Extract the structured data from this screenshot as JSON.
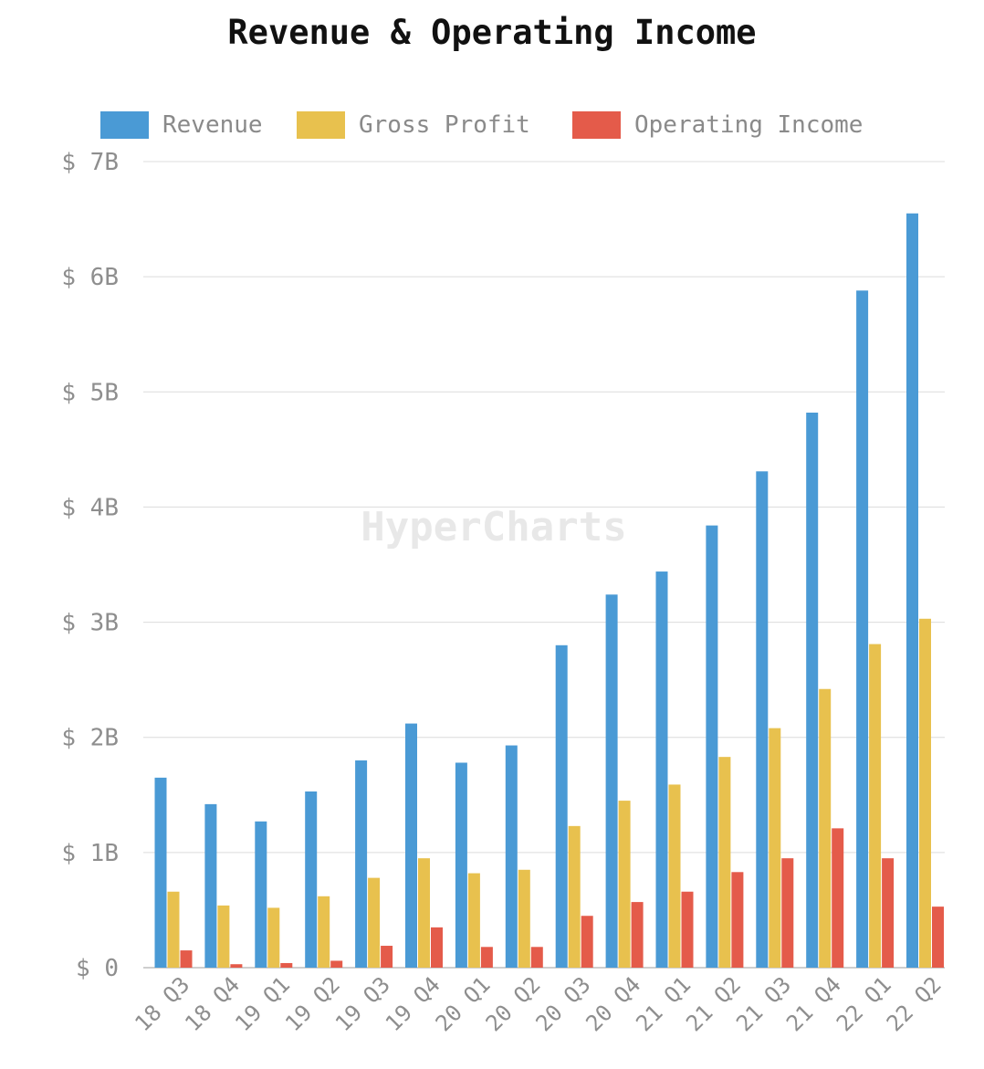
{
  "chart_data": {
    "type": "bar",
    "title": "Revenue & Operating Income",
    "watermark": "HyperCharts",
    "categories": [
      "18 Q3",
      "18 Q4",
      "19 Q1",
      "19 Q2",
      "19 Q3",
      "19 Q4",
      "20 Q1",
      "20 Q2",
      "20 Q3",
      "20 Q4",
      "21 Q1",
      "21 Q2",
      "21 Q3",
      "21 Q4",
      "22 Q1",
      "22 Q2"
    ],
    "series": [
      {
        "name": "Revenue",
        "color": "#4a9ad5",
        "values": [
          1.65,
          1.42,
          1.27,
          1.53,
          1.8,
          2.12,
          1.78,
          1.93,
          2.8,
          3.24,
          3.44,
          3.84,
          4.31,
          4.82,
          5.88,
          6.55
        ]
      },
      {
        "name": "Gross Profit",
        "color": "#e8c14e",
        "values": [
          0.66,
          0.54,
          0.52,
          0.62,
          0.78,
          0.95,
          0.82,
          0.85,
          1.23,
          1.45,
          1.59,
          1.83,
          2.08,
          2.42,
          2.81,
          3.03
        ]
      },
      {
        "name": "Operating Income",
        "color": "#e45b4a",
        "values": [
          0.15,
          0.03,
          0.04,
          0.06,
          0.19,
          0.35,
          0.18,
          0.18,
          0.45,
          0.57,
          0.66,
          0.83,
          0.95,
          1.21,
          0.95,
          0.53
        ]
      }
    ],
    "yticks": [
      "$ 0",
      "$ 1B",
      "$ 2B",
      "$ 3B",
      "$ 4B",
      "$ 5B",
      "$ 6B",
      "$ 7B"
    ],
    "ylim": [
      0,
      7
    ],
    "yunit": "billions USD",
    "legend_position": "top",
    "grid": true
  }
}
